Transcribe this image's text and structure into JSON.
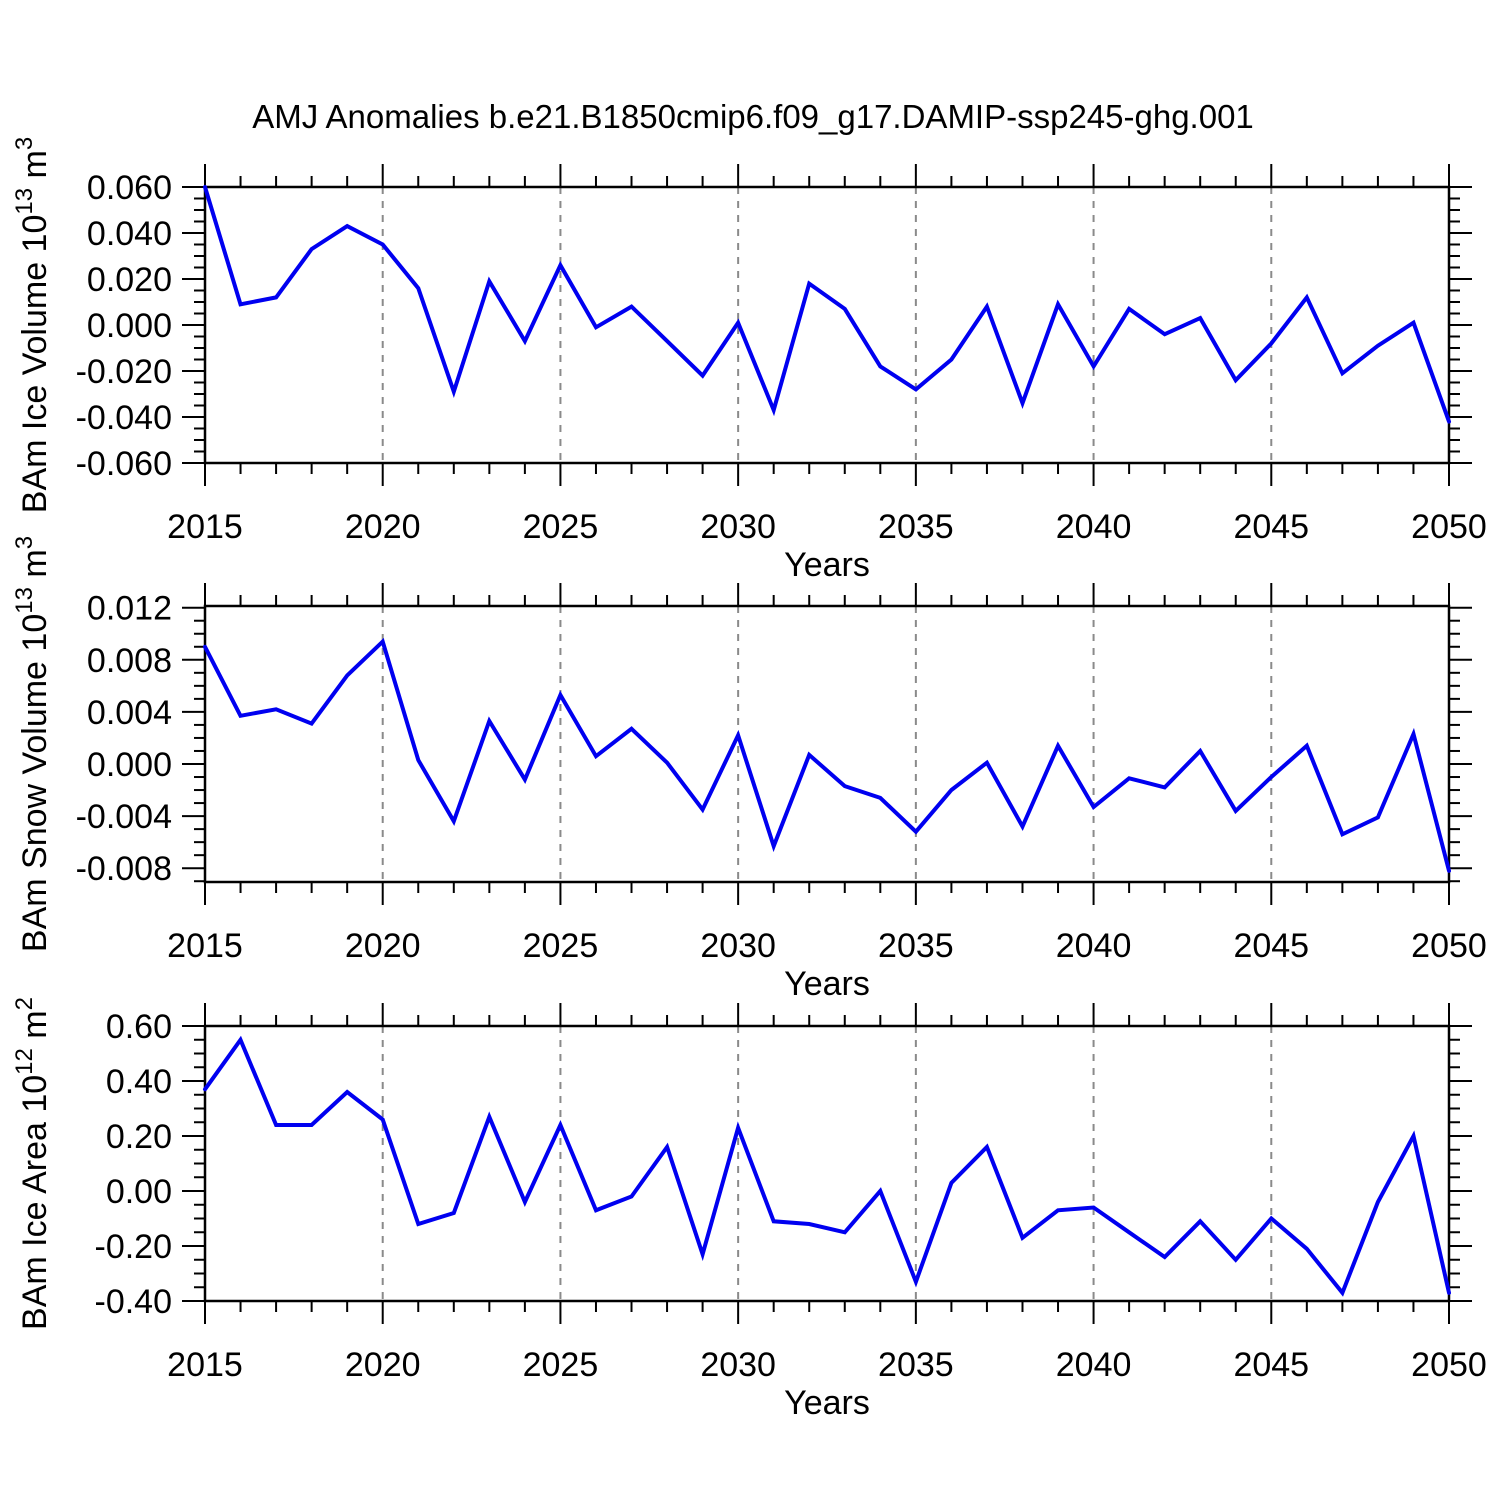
{
  "title": "AMJ Anomalies b.e21.B1850cmip6.f09_g17.DAMIP-ssp245-ghg.001",
  "line_color": "#0000f0",
  "grid_color": "#8a8a8a",
  "axis_color": "#000000",
  "chart_data": [
    {
      "type": "line",
      "id": "ice-volume",
      "series_name": "BAm Ice Volume",
      "ylabel_text": "BAm Ice Volume 10^13 m^3",
      "ylabel_parts": [
        {
          "text": "BAm Ice Volume 10",
          "sup": false
        },
        {
          "text": "13",
          "sup": true
        },
        {
          "text": " m",
          "sup": false
        },
        {
          "text": "3",
          "sup": true
        }
      ],
      "xlabel": "Years",
      "xlim": [
        2015,
        2050
      ],
      "ylim": [
        -0.06,
        0.06
      ],
      "yticks": [
        0.06,
        0.04,
        0.02,
        0,
        -0.02,
        -0.04,
        -0.06
      ],
      "ytick_decimals": 3,
      "yminor_step": 0.005,
      "xticks": [
        2015,
        2020,
        2025,
        2030,
        2035,
        2040,
        2045,
        2050
      ],
      "xminor_step": 1,
      "grid_x": [
        2020,
        2025,
        2030,
        2035,
        2040,
        2045
      ],
      "x": [
        2015,
        2016,
        2017,
        2018,
        2019,
        2020,
        2021,
        2022,
        2023,
        2024,
        2025,
        2026,
        2027,
        2028,
        2029,
        2030,
        2031,
        2032,
        2033,
        2034,
        2035,
        2036,
        2037,
        2038,
        2039,
        2040,
        2041,
        2042,
        2043,
        2044,
        2045,
        2046,
        2047,
        2048,
        2049,
        2050
      ],
      "values": [
        0.06,
        0.009,
        0.012,
        0.033,
        0.043,
        0.035,
        0.016,
        -0.029,
        0.019,
        -0.007,
        0.026,
        -0.001,
        0.008,
        -0.007,
        -0.022,
        0.001,
        -0.037,
        0.018,
        0.007,
        -0.018,
        -0.028,
        -0.015,
        0.008,
        -0.034,
        0.009,
        -0.018,
        0.007,
        -0.004,
        0.003,
        -0.024,
        -0.008,
        0.012,
        -0.021,
        -0.009,
        0.001,
        -0.042
      ]
    },
    {
      "type": "line",
      "id": "snow-volume",
      "series_name": "BAm Snow Volume",
      "ylabel_text": "BAm Snow Volume 10^13 m^3",
      "ylabel_parts": [
        {
          "text": "BAm Snow Volume 10",
          "sup": false
        },
        {
          "text": "13",
          "sup": true
        },
        {
          "text": " m",
          "sup": false
        },
        {
          "text": "3",
          "sup": true
        }
      ],
      "xlabel": "Years",
      "xlim": [
        2015,
        2050
      ],
      "ylim": [
        -0.00906,
        0.01213
      ],
      "yticks": [
        0.012,
        0.008,
        0.004,
        0,
        -0.004,
        -0.008
      ],
      "ytick_decimals": 3,
      "yminor_step": 0.001,
      "xticks": [
        2015,
        2020,
        2025,
        2030,
        2035,
        2040,
        2045,
        2050
      ],
      "xminor_step": 1,
      "grid_x": [
        2020,
        2025,
        2030,
        2035,
        2040,
        2045
      ],
      "x": [
        2015,
        2016,
        2017,
        2018,
        2019,
        2020,
        2021,
        2022,
        2023,
        2024,
        2025,
        2026,
        2027,
        2028,
        2029,
        2030,
        2031,
        2032,
        2033,
        2034,
        2035,
        2036,
        2037,
        2038,
        2039,
        2040,
        2041,
        2042,
        2043,
        2044,
        2045,
        2046,
        2047,
        2048,
        2049,
        2050
      ],
      "values": [
        0.009,
        0.0037,
        0.0042,
        0.0031,
        0.0068,
        0.0094,
        0.0003,
        -0.0044,
        0.0033,
        -0.0012,
        0.0053,
        0.0006,
        0.0027,
        0.0001,
        -0.0035,
        0.0022,
        -0.0063,
        0.0007,
        -0.0017,
        -0.0026,
        -0.0052,
        -0.002,
        0.0001,
        -0.0048,
        0.0014,
        -0.0033,
        -0.0011,
        -0.0018,
        0.001,
        -0.0036,
        -0.001,
        0.0014,
        -0.0054,
        -0.0041,
        0.0023,
        -0.0082
      ]
    },
    {
      "type": "line",
      "id": "ice-area",
      "series_name": "BAm Ice Area",
      "ylabel_text": "BAm Ice Area 10^12 m^2",
      "ylabel_parts": [
        {
          "text": "BAm Ice Area 10",
          "sup": false
        },
        {
          "text": "12",
          "sup": true
        },
        {
          "text": " m",
          "sup": false
        },
        {
          "text": "2",
          "sup": true
        }
      ],
      "xlabel": "Years",
      "xlim": [
        2015,
        2050
      ],
      "ylim": [
        -0.4,
        0.6
      ],
      "yticks": [
        0.6,
        0.4,
        0.2,
        0,
        -0.2,
        -0.4
      ],
      "ytick_decimals": 2,
      "yminor_step": 0.05,
      "xticks": [
        2015,
        2020,
        2025,
        2030,
        2035,
        2040,
        2045,
        2050
      ],
      "xminor_step": 1,
      "grid_x": [
        2020,
        2025,
        2030,
        2035,
        2040,
        2045
      ],
      "x": [
        2015,
        2016,
        2017,
        2018,
        2019,
        2020,
        2021,
        2022,
        2023,
        2024,
        2025,
        2026,
        2027,
        2028,
        2029,
        2030,
        2031,
        2032,
        2033,
        2034,
        2035,
        2036,
        2037,
        2038,
        2039,
        2040,
        2041,
        2042,
        2043,
        2044,
        2045,
        2046,
        2047,
        2048,
        2049,
        2050
      ],
      "values": [
        0.37,
        0.55,
        0.24,
        0.24,
        0.36,
        0.26,
        -0.12,
        -0.08,
        0.27,
        -0.04,
        0.24,
        -0.07,
        -0.02,
        0.16,
        -0.23,
        0.23,
        -0.11,
        -0.12,
        -0.15,
        0.0,
        -0.33,
        0.03,
        0.16,
        -0.17,
        -0.07,
        -0.06,
        -0.15,
        -0.24,
        -0.11,
        -0.25,
        -0.1,
        -0.21,
        -0.37,
        -0.04,
        0.2,
        -0.37
      ]
    }
  ]
}
